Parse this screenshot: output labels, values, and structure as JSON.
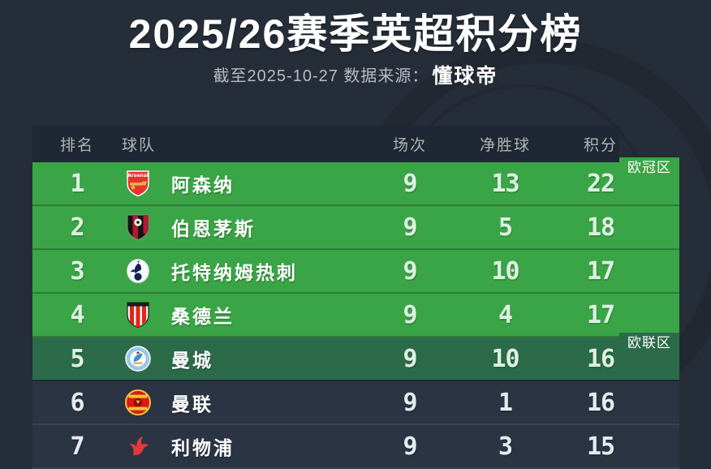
{
  "page": {
    "title": "2025/26赛季英超积分榜",
    "subtitle_prefix": "截至2025-10-27 数据来源：",
    "subtitle_source": "懂球帝"
  },
  "colors": {
    "background": "#252d38",
    "header_row": "#1e2733",
    "champions_zone_green": "#3aa546",
    "europa_zone_green": "#2c6b4a",
    "dark_row": "#2b3442",
    "number_text": "#dff0e2"
  },
  "chart_data": {
    "type": "table",
    "title": "2025/26赛季英超积分榜",
    "as_of": "截至2025-10-27",
    "source": "懂球帝",
    "columns": [
      "排名",
      "球队",
      "场次",
      "净胜球",
      "积分"
    ],
    "zone_labels": [
      "欧冠区",
      "欧联区"
    ],
    "rows": [
      {
        "rank": 1,
        "team": "阿森纳",
        "logo": "arsenal",
        "played": 9,
        "gd": 13,
        "points": 22,
        "zone": "champions",
        "zone_label": "欧冠区"
      },
      {
        "rank": 2,
        "team": "伯恩茅斯",
        "logo": "bournemouth",
        "played": 9,
        "gd": 5,
        "points": 18,
        "zone": "champions"
      },
      {
        "rank": 3,
        "team": "托特纳姆热刺",
        "logo": "tottenham",
        "played": 9,
        "gd": 10,
        "points": 17,
        "zone": "champions"
      },
      {
        "rank": 4,
        "team": "桑德兰",
        "logo": "sunderland",
        "played": 9,
        "gd": 4,
        "points": 17,
        "zone": "champions"
      },
      {
        "rank": 5,
        "team": "曼城",
        "logo": "man-city",
        "played": 9,
        "gd": 10,
        "points": 16,
        "zone": "europa",
        "zone_label": "欧联区"
      },
      {
        "rank": 6,
        "team": "曼联",
        "logo": "man-united",
        "played": 9,
        "gd": 1,
        "points": 16,
        "zone": "none"
      },
      {
        "rank": 7,
        "team": "利物浦",
        "logo": "liverpool",
        "played": 9,
        "gd": 3,
        "points": 15,
        "zone": "none"
      }
    ]
  }
}
